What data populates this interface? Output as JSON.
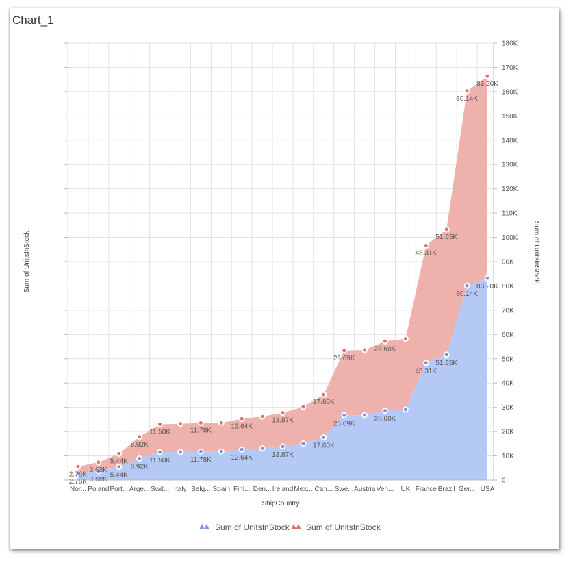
{
  "window": {
    "title": "Chart_1"
  },
  "chart_data": {
    "type": "area",
    "stacked": true,
    "categories": [
      "Nor...",
      "Poland",
      "Port...",
      "Arge...",
      "Swit...",
      "Italy",
      "Belg...",
      "Spain",
      "Finl...",
      "Den...",
      "Ireland",
      "Mex...",
      "Can...",
      "Swe...",
      "Austria",
      "Ven...",
      "UK",
      "France",
      "Brazil",
      "Ger...",
      "USA"
    ],
    "series": [
      {
        "name": "Sum of UnitsInStock",
        "color": "#b4c9f5",
        "marker_color": "#7b95de",
        "values": [
          2780,
          3680,
          5440,
          8920,
          11500,
          11600,
          11780,
          11800,
          12640,
          13100,
          13870,
          15100,
          17600,
          26690,
          26800,
          28600,
          29100,
          48310,
          51650,
          80140,
          83200
        ]
      },
      {
        "name": "Sum of UnitsInStock",
        "color": "#efb1ab",
        "marker_color": "#e07068",
        "values": [
          2780,
          3680,
          5440,
          8920,
          11500,
          11600,
          11780,
          11800,
          12640,
          13100,
          13870,
          15100,
          17600,
          26690,
          26800,
          28600,
          29100,
          48310,
          51650,
          80140,
          83200
        ]
      }
    ],
    "data_labels": [
      {
        "index": 0,
        "text": "2.78K"
      },
      {
        "index": 1,
        "text": "3.68K"
      },
      {
        "index": 2,
        "text": "5.44K"
      },
      {
        "index": 3,
        "text": "8.92K"
      },
      {
        "index": 4,
        "text": "11.50K"
      },
      {
        "index": 6,
        "text": "11.78K"
      },
      {
        "index": 8,
        "text": "12.64K"
      },
      {
        "index": 10,
        "text": "13.87K"
      },
      {
        "index": 12,
        "text": "17.60K"
      },
      {
        "index": 13,
        "text": "26.69K"
      },
      {
        "index": 15,
        "text": "28.60K"
      },
      {
        "index": 17,
        "text": "48.31K"
      },
      {
        "index": 18,
        "text": "51.65K"
      },
      {
        "index": 19,
        "text": "80.14K"
      },
      {
        "index": 20,
        "text": "83.20K"
      }
    ],
    "xlabel": "ShipCountry",
    "ylabel": "Sum of UnitsInStock",
    "y2label": "Sum of UnitsInStock",
    "ylim": [
      0,
      180000
    ],
    "y_ticks": [
      "0",
      "10K",
      "20K",
      "30K",
      "40K",
      "50K",
      "60K",
      "70K",
      "80K",
      "90K",
      "100K",
      "110K",
      "120K",
      "130K",
      "140K",
      "150K",
      "160K",
      "170K",
      "180K"
    ],
    "grid": true,
    "legend": {
      "position": "bottom",
      "entries": [
        "Sum of UnitsInStock",
        "Sum of UnitsInStock"
      ]
    }
  }
}
